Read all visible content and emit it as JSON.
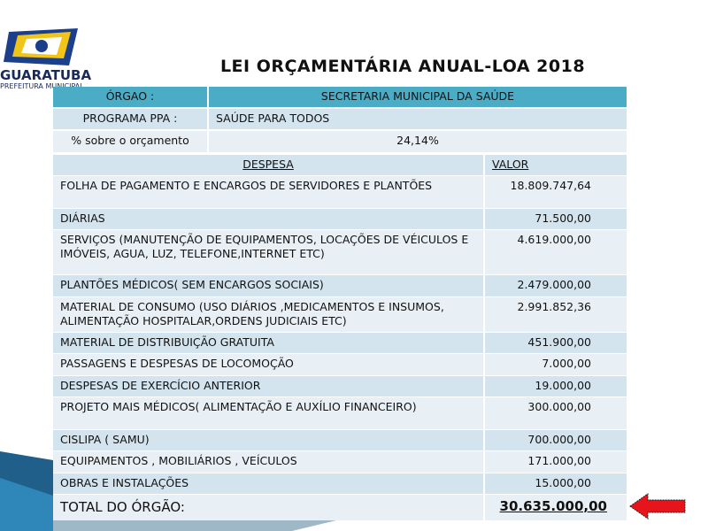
{
  "header": {
    "logo_name": "GUARATUBA",
    "logo_subtitle": "PREFEITURA MUNICIPAL",
    "title": "LEI ORÇAMENTÁRIA ANUAL-LOA 2018"
  },
  "info": {
    "orgao_label": "ÓRGAO :",
    "orgao_value": "SECRETARIA MUNICIPAL DA  SAÚDE",
    "programa_label": "PROGRAMA PPA :",
    "programa_value": "SAÚDE  PARA TODOS",
    "percent_label": "% sobre o orçamento",
    "percent_value": "24,14%"
  },
  "table": {
    "columns": [
      "DESPESA",
      "VALOR"
    ],
    "rows": [
      [
        "FOLHA DE PAGAMENTO E ENCARGOS DE  SERVIDORES E PLANTÕES",
        "18.809.747,64"
      ],
      [
        "DIÁRIAS",
        "71.500,00"
      ],
      [
        "SERVIÇOS (MANUTENÇÃO DE EQUIPAMENTOS, LOCAÇÕES DE VÉICULOS E IMÓVEIS, AGUA, LUZ, TELEFONE,INTERNET  ETC)",
        "4.619.000,00"
      ],
      [
        "PLANTÕES MÉDICOS( SEM ENCARGOS SOCIAIS)",
        "2.479.000,00"
      ],
      [
        "MATERIAL DE  CONSUMO (USO DIÁRIOS ,MEDICAMENTOS E INSUMOS, ALIMENTAÇÃO HOSPITALAR,ORDENS JUDICIAIS ETC)",
        "2.991.852,36"
      ],
      [
        "MATERIAL  DE DISTRIBUIÇÃO GRATUITA",
        "451.900,00"
      ],
      [
        "PASSAGENS  E DESPESAS  DE LOCOMOÇÃO",
        "7.000,00"
      ],
      [
        "DESPESAS DE EXERCÍCIO ANTERIOR",
        "19.000,00"
      ],
      [
        "PROJETO MAIS MÉDICOS( ALIMENTAÇÃO E AUXÍLIO FINANCEIRO)",
        "300.000,00"
      ],
      [
        "CISLIPA ( SAMU)",
        "700.000,00"
      ],
      [
        "EQUIPAMENTOS , MOBILIÁRIOS , VEÍCULOS",
        "171.000,00"
      ],
      [
        "OBRAS E INSTALAÇÕES",
        "15.000,00"
      ]
    ],
    "total": [
      "TOTAL DO ÓRGÃO:",
      "30.635.000,00"
    ]
  }
}
